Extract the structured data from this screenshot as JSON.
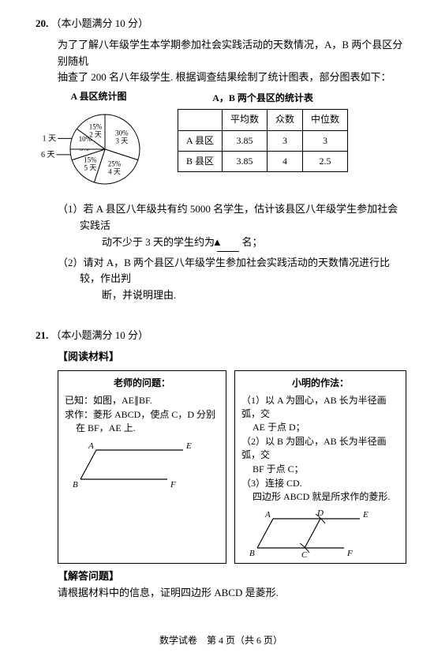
{
  "q20": {
    "number": "20.",
    "points": "（本小题满分 10 分）",
    "intro1": "为了了解八年级学生本学期参加社会实践活动的天数情况，A，B 两个县区分别随机",
    "intro2": "抽查了 200 名八年级学生. 根据调查结果绘制了统计图表，部分图表如下：",
    "pie_title": "A 县区统计图",
    "table_title": "A，B 两个县区的统计表",
    "pie": {
      "background": "#ffffff",
      "stroke": "#000000",
      "slices": [
        {
          "label": "30%",
          "sub": "3 天",
          "start": 0,
          "end": 108
        },
        {
          "label": "25%",
          "sub": "4 天",
          "start": 108,
          "end": 198
        },
        {
          "label": "15%",
          "sub": "5 天",
          "start": 198,
          "end": 252
        },
        {
          "label": "5%",
          "sub": "",
          "start": 252,
          "end": 270
        },
        {
          "label": "10%",
          "sub": "",
          "start": 270,
          "end": 306
        },
        {
          "label": "15%",
          "sub": "2 天",
          "start": 306,
          "end": 360
        }
      ],
      "outer_labels": {
        "one_day": "1 天",
        "six_day": "6 天"
      },
      "radius": 44
    },
    "table": {
      "headers": [
        "",
        "平均数",
        "众数",
        "中位数"
      ],
      "rows": [
        [
          "A 县区",
          "3.85",
          "3",
          "3"
        ],
        [
          "B 县区",
          "3.85",
          "4",
          "2.5"
        ]
      ]
    },
    "part1a": "（1）若 A 县区八年级共有约 5000 名学生，估计该县区八年级学生参加社会实践活",
    "part1b": "动不少于 3 天的学生约为",
    "blank": "▲",
    "part1c": "名；",
    "part2a": "（2）请对 A，B 两个县区八年级学生参加社会实践活动的天数情况进行比较，作出判",
    "part2b": "断，并说明理由."
  },
  "q21": {
    "number": "21.",
    "points": "（本小题满分 10 分）",
    "read": "【阅读材料】",
    "answer": "【解答问题】",
    "left": {
      "title": "老师的问题：",
      "l1": "已知：如图，AE∥BF.",
      "l2": "求作：菱形 ABCD，使点 C，D 分别",
      "l3": "在 BF，AE 上.",
      "pts": {
        "A": "A",
        "B": "B",
        "E": "E",
        "F": "F"
      }
    },
    "right": {
      "title": "小明的作法：",
      "l1": "（1）以 A 为圆心，AB 长为半径画弧，交",
      "l1b": "AE 于点 D；",
      "l2": "（2）以 B 为圆心，AB 长为半径画弧，交",
      "l2b": "BF 于点 C；",
      "l3": "（3）连接 CD.",
      "l4": "四边形 ABCD 就是所求作的菱形.",
      "pts": {
        "A": "A",
        "B": "B",
        "C": "C",
        "D": "D",
        "E": "E",
        "F": "F"
      }
    },
    "final": "请根据材料中的信息，证明四边形 ABCD 是菱形."
  },
  "footer": "数学试卷　第 4 页（共 6 页）"
}
